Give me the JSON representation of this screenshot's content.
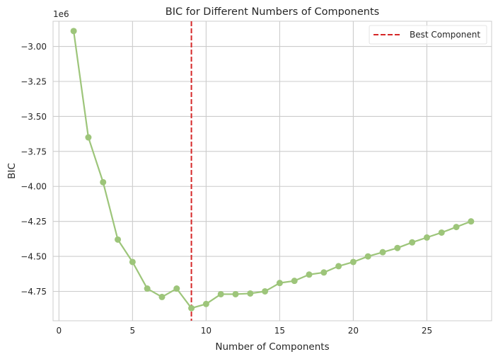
{
  "chart_data": {
    "type": "line",
    "title": "BIC for Different Numbers of Components",
    "xlabel": "Number of Components",
    "ylabel": "BIC",
    "y_offset_text": "1e6",
    "xlim": [
      -0.4,
      29.4
    ],
    "ylim": [
      -4.96,
      -2.82
    ],
    "x_ticks": [
      0,
      5,
      10,
      15,
      20,
      25
    ],
    "x_tick_labels": [
      "0",
      "5",
      "10",
      "15",
      "20",
      "25"
    ],
    "y_ticks": [
      -3.0,
      -3.25,
      -3.5,
      -3.75,
      -4.0,
      -4.25,
      -4.5,
      -4.75
    ],
    "y_tick_labels": [
      "−3.00",
      "−3.25",
      "−3.50",
      "−3.75",
      "−4.00",
      "−4.25",
      "−4.50",
      "−4.75"
    ],
    "grid": true,
    "legend_position": "top-right",
    "series": [
      {
        "color": "#9dc57a",
        "x": [
          1,
          2,
          3,
          4,
          5,
          6,
          7,
          8,
          9,
          10,
          11,
          12,
          13,
          14,
          15,
          16,
          17,
          18,
          19,
          20,
          21,
          22,
          23,
          24,
          25,
          26,
          27,
          28
        ],
        "values": [
          -2.89,
          -3.65,
          -3.97,
          -4.38,
          -4.54,
          -4.73,
          -4.79,
          -4.73,
          -4.87,
          -4.84,
          -4.77,
          -4.77,
          -4.765,
          -4.75,
          -4.69,
          -4.675,
          -4.63,
          -4.615,
          -4.57,
          -4.54,
          -4.5,
          -4.47,
          -4.44,
          -4.4,
          -4.365,
          -4.33,
          -4.29,
          -4.25
        ]
      }
    ],
    "vline": {
      "x": 9,
      "color": "#d62728",
      "style": "dashed",
      "label": "Best Component"
    }
  }
}
